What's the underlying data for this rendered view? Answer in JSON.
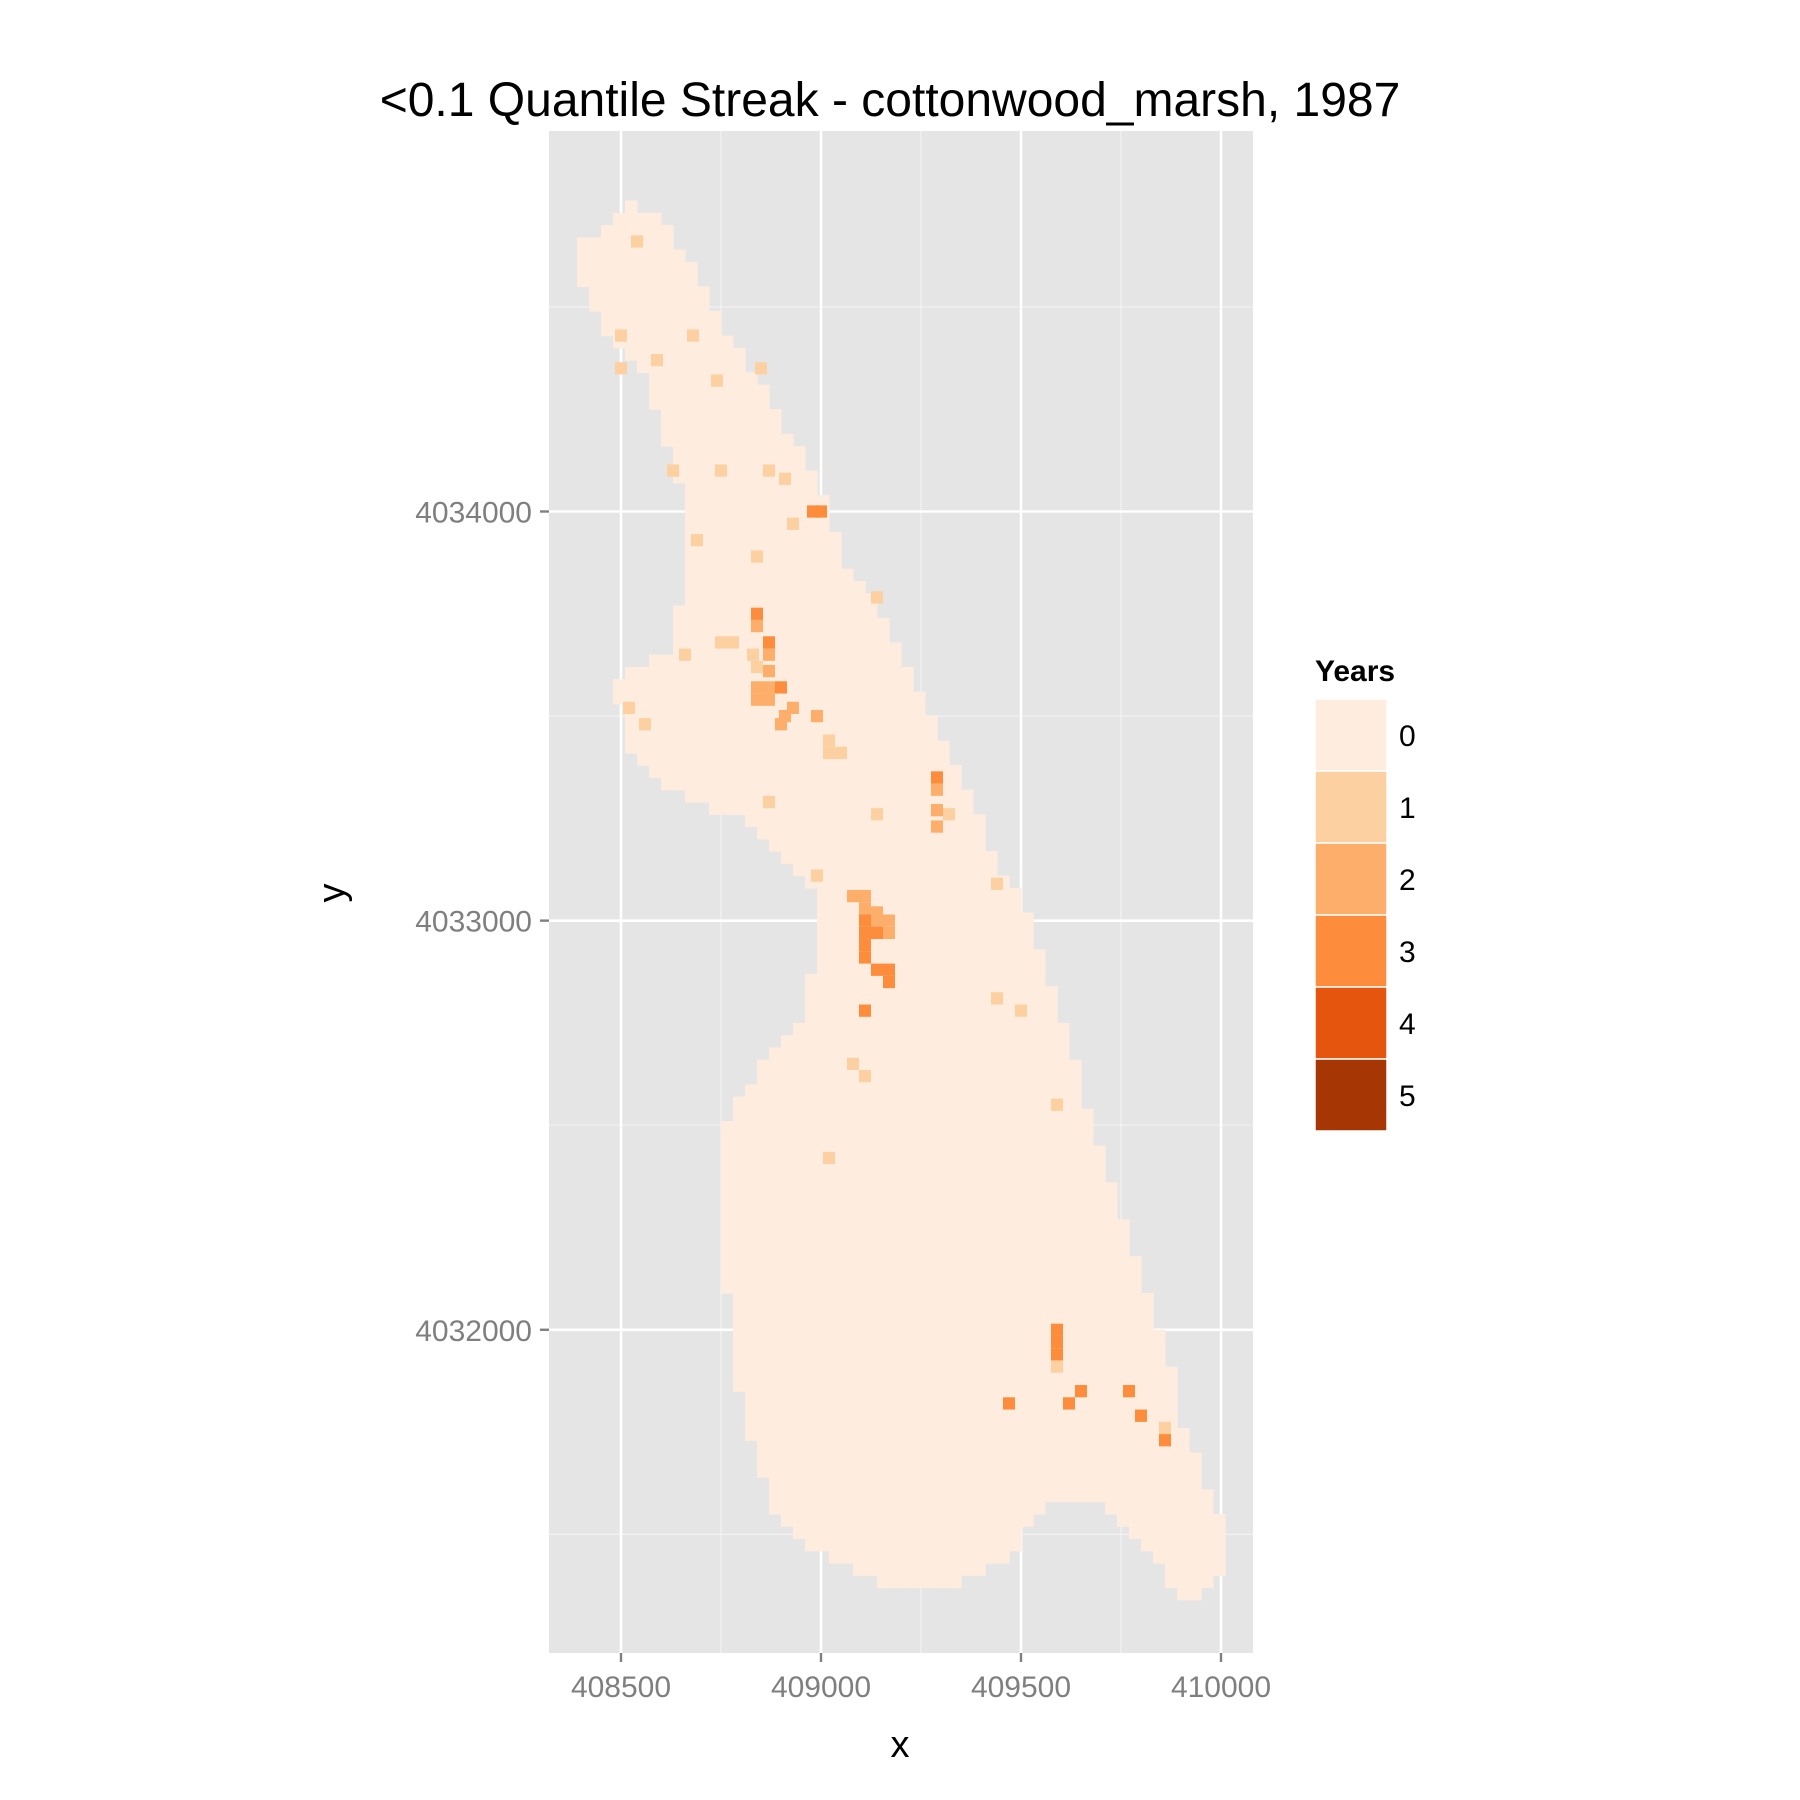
{
  "chart_data": {
    "type": "heatmap",
    "title": "<0.1 Quantile Streak - cottonwood_marsh, 1987",
    "xlabel": "x",
    "ylabel": "y",
    "xlim": [
      408320,
      410080
    ],
    "ylim": [
      4031210,
      4034930
    ],
    "x_ticks": [
      408500,
      409000,
      409500,
      410000
    ],
    "y_ticks": [
      4032000,
      4033000,
      4034000
    ],
    "x_tick_labels": [
      "408500",
      "409000",
      "409500",
      "410000"
    ],
    "y_tick_labels": [
      "4032000",
      "4033000",
      "4034000"
    ],
    "grid": true,
    "cell_size": 30,
    "legend": {
      "title": "Years",
      "position": "right",
      "levels": [
        {
          "value": "0",
          "color": "#FEEDDE"
        },
        {
          "value": "1",
          "color": "#FDD0A2"
        },
        {
          "value": "2",
          "color": "#FDAE6B"
        },
        {
          "value": "3",
          "color": "#FD8D3C"
        },
        {
          "value": "4",
          "color": "#E6550D"
        },
        {
          "value": "5",
          "color": "#A63603"
        }
      ]
    },
    "outline": [
      [
        408400,
        4034660
      ],
      [
        408470,
        4034700
      ],
      [
        408520,
        4034750
      ],
      [
        408590,
        4034740
      ],
      [
        408650,
        4034640
      ],
      [
        408730,
        4034500
      ],
      [
        408810,
        4034370
      ],
      [
        408890,
        4034240
      ],
      [
        408960,
        4034120
      ],
      [
        409020,
        4034010
      ],
      [
        409060,
        4033880
      ],
      [
        409140,
        4033770
      ],
      [
        409200,
        4033640
      ],
      [
        409260,
        4033520
      ],
      [
        409320,
        4033400
      ],
      [
        409390,
        4033260
      ],
      [
        409450,
        4033130
      ],
      [
        409530,
        4032990
      ],
      [
        409590,
        4032800
      ],
      [
        409650,
        4032600
      ],
      [
        409720,
        4032390
      ],
      [
        409780,
        4032210
      ],
      [
        409830,
        4032060
      ],
      [
        409880,
        4031900
      ],
      [
        409900,
        4031760
      ],
      [
        409950,
        4031660
      ],
      [
        410000,
        4031530
      ],
      [
        410000,
        4031400
      ],
      [
        409940,
        4031330
      ],
      [
        409880,
        4031360
      ],
      [
        409820,
        4031470
      ],
      [
        409740,
        4031540
      ],
      [
        409650,
        4031600
      ],
      [
        409600,
        4031580
      ],
      [
        409550,
        4031550
      ],
      [
        409470,
        4031450
      ],
      [
        409320,
        4031370
      ],
      [
        409150,
        4031380
      ],
      [
        409000,
        4031450
      ],
      [
        408880,
        4031560
      ],
      [
        408820,
        4031740
      ],
      [
        408780,
        4031940
      ],
      [
        408760,
        4032140
      ],
      [
        408740,
        4032340
      ],
      [
        408760,
        4032500
      ],
      [
        408840,
        4032640
      ],
      [
        408950,
        4032760
      ],
      [
        408980,
        4032900
      ],
      [
        408980,
        4033080
      ],
      [
        408920,
        4033150
      ],
      [
        408790,
        4033250
      ],
      [
        408640,
        4033310
      ],
      [
        408520,
        4033410
      ],
      [
        408480,
        4033590
      ],
      [
        408620,
        4033650
      ],
      [
        408650,
        4033800
      ],
      [
        408650,
        4034050
      ],
      [
        408600,
        4034200
      ],
      [
        408550,
        4034350
      ],
      [
        408450,
        4034450
      ],
      [
        408400,
        4034560
      ]
    ],
    "points": [
      [
        408540,
        4034660,
        1
      ],
      [
        408500,
        4034430,
        1
      ],
      [
        408680,
        4034430,
        1
      ],
      [
        408590,
        4034370,
        1
      ],
      [
        408500,
        4034350,
        1
      ],
      [
        408740,
        4034320,
        1
      ],
      [
        408850,
        4034350,
        1
      ],
      [
        408630,
        4034100,
        1
      ],
      [
        408750,
        4034100,
        1
      ],
      [
        408870,
        4034100,
        1
      ],
      [
        408910,
        4034080,
        1
      ],
      [
        408980,
        4034000,
        3
      ],
      [
        409000,
        4034000,
        3
      ],
      [
        408930,
        4033970,
        1
      ],
      [
        408690,
        4033930,
        1
      ],
      [
        408840,
        4033890,
        1
      ],
      [
        409140,
        4033790,
        1
      ],
      [
        408840,
        4033750,
        3
      ],
      [
        408840,
        4033720,
        2
      ],
      [
        408780,
        4033680,
        1
      ],
      [
        408750,
        4033680,
        1
      ],
      [
        408870,
        4033680,
        3
      ],
      [
        408660,
        4033650,
        1
      ],
      [
        408830,
        4033650,
        1
      ],
      [
        408870,
        4033650,
        2
      ],
      [
        408840,
        4033620,
        1
      ],
      [
        408870,
        4033610,
        2
      ],
      [
        408840,
        4033570,
        2
      ],
      [
        408870,
        4033570,
        2
      ],
      [
        408900,
        4033570,
        3
      ],
      [
        408840,
        4033540,
        2
      ],
      [
        408870,
        4033540,
        2
      ],
      [
        408520,
        4033520,
        1
      ],
      [
        408930,
        4033520,
        2
      ],
      [
        408910,
        4033500,
        2
      ],
      [
        408990,
        4033500,
        2
      ],
      [
        408900,
        4033480,
        2
      ],
      [
        408560,
        4033480,
        1
      ],
      [
        409020,
        4033440,
        1
      ],
      [
        409020,
        4033410,
        1
      ],
      [
        409050,
        4033410,
        1
      ],
      [
        409290,
        4033350,
        3
      ],
      [
        409290,
        4033320,
        2
      ],
      [
        408870,
        4033290,
        1
      ],
      [
        409290,
        4033270,
        2
      ],
      [
        409140,
        4033260,
        1
      ],
      [
        409320,
        4033260,
        1
      ],
      [
        409290,
        4033230,
        2
      ],
      [
        408990,
        4033110,
        1
      ],
      [
        409440,
        4033090,
        1
      ],
      [
        409080,
        4033060,
        2
      ],
      [
        409110,
        4033060,
        2
      ],
      [
        409110,
        4033030,
        2
      ],
      [
        409110,
        4033000,
        3
      ],
      [
        409140,
        4033020,
        2
      ],
      [
        409170,
        4033000,
        2
      ],
      [
        409140,
        4032990,
        2
      ],
      [
        409110,
        4032970,
        3
      ],
      [
        409140,
        4032970,
        3
      ],
      [
        409170,
        4032970,
        2
      ],
      [
        409110,
        4032940,
        3
      ],
      [
        409110,
        4032910,
        3
      ],
      [
        409140,
        4032880,
        3
      ],
      [
        409170,
        4032880,
        3
      ],
      [
        409170,
        4032850,
        3
      ],
      [
        409440,
        4032810,
        1
      ],
      [
        409500,
        4032780,
        1
      ],
      [
        409110,
        4032780,
        3
      ],
      [
        409080,
        4032650,
        1
      ],
      [
        409110,
        4032620,
        1
      ],
      [
        409590,
        4032550,
        1
      ],
      [
        409020,
        4032420,
        1
      ],
      [
        409590,
        4032000,
        3
      ],
      [
        409590,
        4031970,
        3
      ],
      [
        409590,
        4031940,
        3
      ],
      [
        409590,
        4031910,
        1
      ],
      [
        409650,
        4031850,
        3
      ],
      [
        409770,
        4031850,
        3
      ],
      [
        409470,
        4031820,
        3
      ],
      [
        409620,
        4031820,
        3
      ],
      [
        409800,
        4031790,
        3
      ],
      [
        409860,
        4031760,
        1
      ],
      [
        409860,
        4031730,
        3
      ]
    ]
  }
}
